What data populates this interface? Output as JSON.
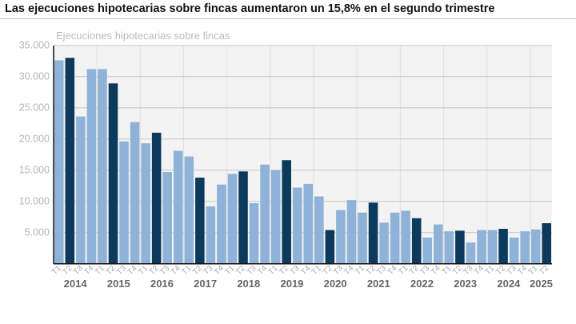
{
  "title": "Las ejecuciones hipotecarias sobre fincas aumentaron un 15,8% en el segundo trimestre",
  "chart_data": {
    "type": "bar",
    "title": "Ejecuciones hipotecarias sobre fincas",
    "xlabel": "",
    "ylabel": "",
    "ylim": [
      0,
      36000
    ],
    "yticks": [
      5000,
      10000,
      15000,
      20000,
      25000,
      30000,
      35000
    ],
    "ytick_labels": [
      "5.000",
      "10.000",
      "15.000",
      "20.000",
      "25.000",
      "30.000",
      "35.000"
    ],
    "grid": true,
    "years": [
      "2014",
      "2015",
      "2016",
      "2017",
      "2018",
      "2019",
      "2020",
      "2021",
      "2022",
      "2023",
      "2024",
      "2025"
    ],
    "categories": [
      "T1",
      "T2",
      "T3",
      "T4",
      "T1",
      "T2",
      "T3",
      "T4",
      "T1",
      "T2",
      "T3",
      "T4",
      "T1",
      "T2",
      "T3",
      "T4",
      "T1",
      "T2",
      "T3",
      "T4",
      "T1",
      "T2",
      "T3",
      "T4",
      "T1",
      "T2",
      "T3",
      "T4",
      "T1",
      "T2",
      "T3",
      "T4",
      "T1",
      "T2",
      "T3",
      "T4",
      "T1",
      "T2",
      "T3",
      "T4",
      "T1",
      "T2",
      "T3",
      "T4",
      "T1",
      "T2"
    ],
    "values": [
      32600,
      33000,
      23600,
      31200,
      31200,
      28900,
      19600,
      22700,
      19300,
      21000,
      14700,
      18100,
      17200,
      13800,
      9200,
      12700,
      14400,
      14800,
      9700,
      15900,
      15000,
      16600,
      12200,
      12800,
      10800,
      5400,
      8600,
      10200,
      8200,
      9800,
      6600,
      8200,
      8500,
      7300,
      4200,
      6300,
      5200,
      5300,
      3400,
      5400,
      5400,
      5600,
      4200,
      5200,
      5500,
      6500
    ],
    "highlight": "T2",
    "colors": {
      "default": "#8eb2d8",
      "highlight": "#0c3a5c",
      "plot_bg": "#f3f3f3"
    }
  }
}
